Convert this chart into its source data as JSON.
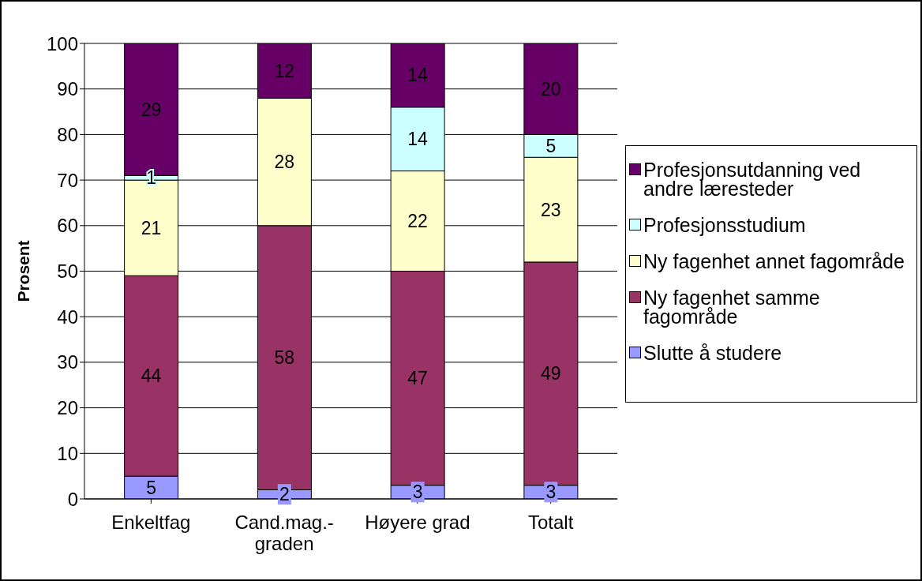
{
  "chart_data": {
    "type": "bar",
    "stacked": true,
    "ylabel": "Prosent",
    "categories": [
      "Enkeltfag",
      "Cand.mag.-graden",
      "Høyere grad",
      "Totalt"
    ],
    "series": [
      {
        "name": "Slutte å studere",
        "color": "#9999ff",
        "values": [
          5,
          2,
          3,
          3
        ]
      },
      {
        "name": "Ny fagenhet samme fagområde",
        "color": "#993366",
        "values": [
          44,
          58,
          47,
          49
        ]
      },
      {
        "name": "Ny fagenhet annet fagområde",
        "color": "#ffffcc",
        "values": [
          21,
          28,
          22,
          23
        ]
      },
      {
        "name": "Profesjonsstudium",
        "color": "#ccffff",
        "values": [
          1,
          null,
          14,
          5
        ]
      },
      {
        "name": "Profesjonsutdanning ved andre læresteder",
        "color": "#660066",
        "values": [
          29,
          12,
          14,
          20
        ]
      }
    ],
    "ylim": [
      0,
      100
    ],
    "yticks": [
      0,
      10,
      20,
      30,
      40,
      50,
      60,
      70,
      80,
      90,
      100
    ],
    "grid": "y",
    "legend": "right",
    "data_labels": true
  }
}
